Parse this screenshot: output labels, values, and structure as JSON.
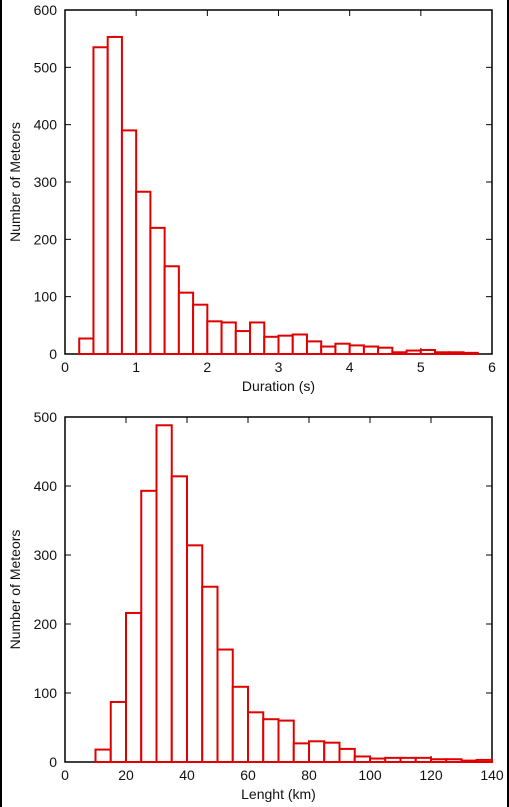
{
  "chart_data": [
    {
      "type": "bar",
      "histogram": true,
      "title": "",
      "xlabel": "Duration (s)",
      "ylabel": "Number of Meteors",
      "xlim": [
        0,
        6
      ],
      "ylim": [
        0,
        600
      ],
      "xticks": [
        0,
        1,
        2,
        3,
        4,
        5,
        6
      ],
      "yticks": [
        0,
        100,
        200,
        300,
        400,
        500,
        600
      ],
      "bin_edges": [
        0.2,
        0.4,
        0.6,
        0.8,
        1.0,
        1.2,
        1.4,
        1.6,
        1.8,
        2.0,
        2.2,
        2.4,
        2.6,
        2.8,
        3.0,
        3.2,
        3.4,
        3.6,
        3.8,
        4.0,
        4.2,
        4.4,
        4.6,
        4.8,
        5.0,
        5.2,
        5.4,
        5.6,
        5.8
      ],
      "values": [
        27,
        535,
        553,
        390,
        283,
        220,
        153,
        107,
        86,
        57,
        55,
        40,
        55,
        30,
        32,
        34,
        22,
        13,
        18,
        15,
        13,
        11,
        3,
        6,
        7,
        3,
        3,
        2
      ],
      "color": "#e00000",
      "grid": false
    },
    {
      "type": "bar",
      "histogram": true,
      "title": "",
      "xlabel": "Lenght (km)",
      "ylabel": "Number of Meteors",
      "xlim": [
        0,
        140
      ],
      "ylim": [
        0,
        500
      ],
      "xticks": [
        0,
        20,
        40,
        60,
        80,
        100,
        120,
        140
      ],
      "yticks": [
        0,
        100,
        200,
        300,
        400,
        500
      ],
      "bin_edges": [
        10,
        15,
        20,
        25,
        30,
        35,
        40,
        45,
        50,
        55,
        60,
        65,
        70,
        75,
        80,
        85,
        90,
        95,
        100,
        105,
        110,
        115,
        120,
        125,
        130,
        135,
        140
      ],
      "values": [
        18,
        87,
        216,
        393,
        488,
        414,
        314,
        254,
        163,
        109,
        72,
        62,
        60,
        27,
        30,
        28,
        19,
        8,
        5,
        6,
        6,
        6,
        4,
        4,
        2,
        3
      ],
      "color": "#e00000",
      "grid": false
    }
  ]
}
